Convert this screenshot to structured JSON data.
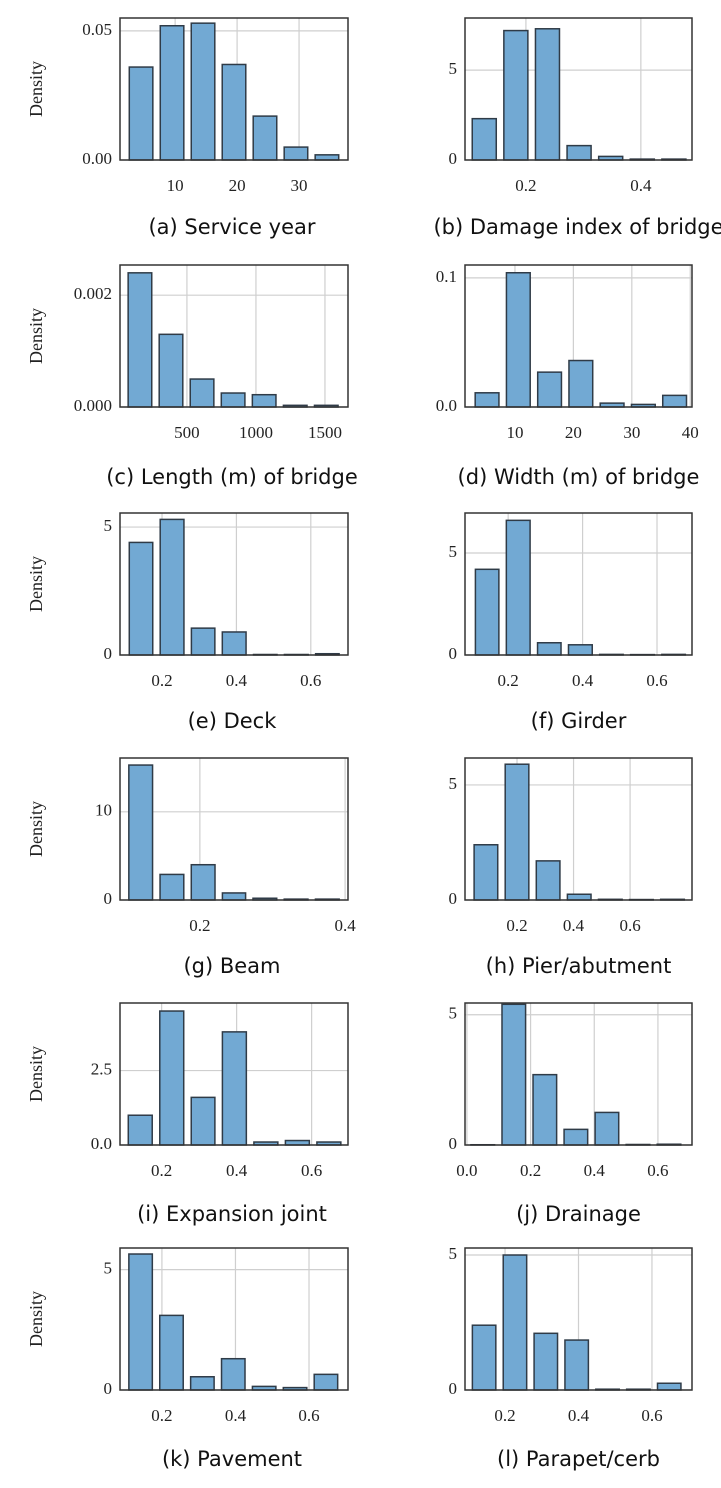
{
  "chart_data": [
    {
      "type": "histogram",
      "title": "(a) Service year",
      "ylabel": "Density",
      "color": "#72a9d3",
      "bins": [
        2,
        7,
        12,
        17,
        22,
        27,
        32,
        37
      ],
      "values": [
        0.036,
        0.052,
        0.053,
        0.037,
        0.017,
        0.005,
        0.002
      ],
      "xlim": [
        1.1,
        37.9
      ],
      "ylim": [
        0,
        0.055
      ],
      "xticks": [
        10,
        20,
        30
      ],
      "yticks": [
        {
          "value": 0,
          "label": "0.00"
        },
        0.05
      ],
      "grid": true
    },
    {
      "type": "histogram",
      "title": "(b) Damage index of bridge",
      "color": "#72a9d3",
      "bins": [
        0.1,
        0.155,
        0.21,
        0.265,
        0.32,
        0.375,
        0.43,
        0.485
      ],
      "values": [
        2.3,
        7.2,
        7.3,
        0.8,
        0.2,
        0.05,
        0.05
      ],
      "xlim": [
        0.094,
        0.489
      ],
      "ylim": [
        0,
        7.9
      ],
      "xticks": [
        0.2,
        0.4
      ],
      "yticks": [
        0,
        5
      ],
      "grid": true
    },
    {
      "type": "histogram",
      "title": "(c) Length (m) of bridge",
      "ylabel": "Density",
      "color": "#72a9d3",
      "bins": [
        47,
        272,
        497,
        722,
        947,
        1172,
        1397,
        1622
      ],
      "values": [
        0.0024,
        0.0013,
        0.0005,
        0.00025,
        0.00022,
        3e-05,
        3e-05
      ],
      "xlim": [
        15,
        1667
      ],
      "ylim": [
        0,
        0.00254
      ],
      "xticks": [
        500,
        1000,
        1500
      ],
      "yticks": [
        {
          "value": 0,
          "label": "0.000"
        },
        0.002
      ],
      "grid": true
    },
    {
      "type": "histogram",
      "title": "(d) Width (m) of bridge",
      "color": "#72a9d3",
      "bins": [
        2.55,
        7.9,
        13.25,
        18.6,
        23.95,
        29.3,
        34.65,
        40.0
      ],
      "values": [
        0.011,
        0.104,
        0.027,
        0.036,
        0.003,
        0.002,
        0.009
      ],
      "xlim": [
        1.45,
        40.3
      ],
      "ylim": [
        0,
        0.11
      ],
      "xticks": [
        10,
        20,
        30,
        40
      ],
      "yticks": [
        {
          "value": 0,
          "label": "0.0"
        },
        0.1
      ],
      "grid": true
    },
    {
      "type": "histogram",
      "title": "(e) Deck",
      "ylabel": "Density",
      "color": "#72a9d3",
      "bins": [
        0.102,
        0.185,
        0.269,
        0.352,
        0.436,
        0.519,
        0.603,
        0.686
      ],
      "values": [
        4.4,
        5.3,
        1.05,
        0.9,
        0.02,
        0.02,
        0.05
      ],
      "xlim": [
        0.087,
        0.7
      ],
      "ylim": [
        0,
        5.55
      ],
      "xticks": [
        0.2,
        0.4,
        0.6
      ],
      "yticks": [
        0,
        5
      ],
      "grid": true
    },
    {
      "type": "histogram",
      "title": "(f) Girder",
      "color": "#72a9d3",
      "bins": [
        0.102,
        0.185,
        0.269,
        0.352,
        0.436,
        0.519,
        0.603,
        0.686
      ],
      "values": [
        4.2,
        6.6,
        0.6,
        0.5,
        0.03,
        0.02,
        0.03
      ],
      "xlim": [
        0.084,
        0.694
      ],
      "ylim": [
        0,
        6.96
      ],
      "xticks": [
        0.2,
        0.4,
        0.6
      ],
      "yticks": [
        0,
        5
      ],
      "grid": true
    },
    {
      "type": "histogram",
      "title": "(g) Beam",
      "ylabel": "Density",
      "color": "#72a9d3",
      "bins": [
        0.097,
        0.14,
        0.183,
        0.226,
        0.268,
        0.311,
        0.354,
        0.397
      ],
      "values": [
        15.3,
        2.9,
        4.0,
        0.8,
        0.2,
        0.1,
        0.1
      ],
      "xlim": [
        0.09,
        0.404
      ],
      "ylim": [
        0,
        16.1
      ],
      "xticks": [
        0.2,
        0.4
      ],
      "yticks": [
        0,
        10
      ],
      "grid": true
    },
    {
      "type": "histogram",
      "title": "(h) Pier/abutment",
      "color": "#72a9d3",
      "bins": [
        0.035,
        0.145,
        0.255,
        0.365,
        0.475,
        0.585,
        0.695,
        0.805
      ],
      "values": [
        2.4,
        5.9,
        1.7,
        0.25,
        0.03,
        0.02,
        0.03
      ],
      "xlim": [
        0.016,
        0.819
      ],
      "ylim": [
        0,
        6.17
      ],
      "xticks": [
        0.2,
        0.4,
        0.6
      ],
      "yticks": [
        0,
        5
      ],
      "grid": true
    },
    {
      "type": "histogram",
      "title": "(i) Expansion joint",
      "ylabel": "Density",
      "color": "#72a9d3",
      "bins": [
        0.101,
        0.185,
        0.269,
        0.352,
        0.436,
        0.52,
        0.604,
        0.688
      ],
      "values": [
        1.0,
        4.5,
        1.6,
        3.8,
        0.1,
        0.15,
        0.1
      ],
      "xlim": [
        0.089,
        0.697
      ],
      "ylim": [
        0,
        4.77
      ],
      "xticks": [
        0.2,
        0.4,
        0.6
      ],
      "yticks": [
        {
          "value": 0,
          "label": "0.0"
        },
        2.5
      ],
      "grid": true
    },
    {
      "type": "histogram",
      "title": "(j) Drainage",
      "color": "#72a9d3",
      "bins": [
        0.001,
        0.0985,
        0.196,
        0.2935,
        0.391,
        0.4885,
        0.586,
        0.6835
      ],
      "values": [
        0.01,
        5.4,
        2.7,
        0.6,
        1.25,
        0.02,
        0.03
      ],
      "xlim": [
        -0.006,
        0.707
      ],
      "ylim": [
        0,
        5.45
      ],
      "xticks": [
        {
          "value": 0,
          "label": "0.0"
        },
        0.2,
        0.4,
        0.6
      ],
      "yticks": [
        0,
        5
      ],
      "grid": true
    },
    {
      "type": "histogram",
      "title": "(k) Pavement",
      "ylabel": "Density",
      "color": "#72a9d3",
      "bins": [
        0.1,
        0.184,
        0.268,
        0.352,
        0.436,
        0.52,
        0.604,
        0.688
      ],
      "values": [
        5.65,
        3.1,
        0.55,
        1.3,
        0.15,
        0.1,
        0.65
      ],
      "xlim": [
        0.086,
        0.706
      ],
      "ylim": [
        0,
        5.9
      ],
      "xticks": [
        0.2,
        0.4,
        0.6
      ],
      "yticks": [
        0,
        5
      ],
      "grid": true
    },
    {
      "type": "histogram",
      "title": "(l) Parapet/cerb",
      "color": "#72a9d3",
      "bins": [
        0.101,
        0.185,
        0.269,
        0.353,
        0.437,
        0.521,
        0.605,
        0.689
      ],
      "values": [
        2.4,
        5.0,
        2.1,
        1.85,
        0.03,
        0.03,
        0.25
      ],
      "xlim": [
        0.091,
        0.709
      ],
      "ylim": [
        0,
        5.26
      ],
      "xticks": [
        0.2,
        0.4,
        0.6
      ],
      "yticks": [
        0,
        5
      ],
      "grid": true
    }
  ]
}
